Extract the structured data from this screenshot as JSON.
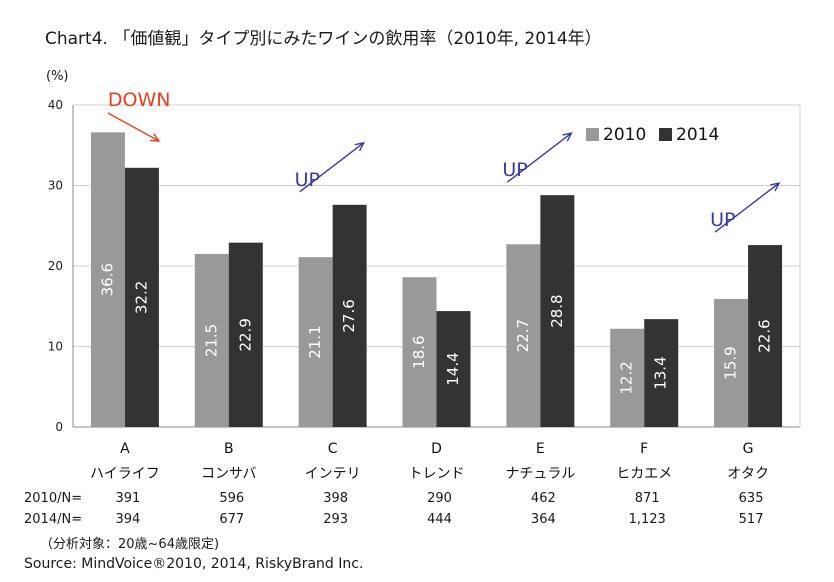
{
  "title": "Chart4. 「価値観」タイプ別にみたワインの飲用率（2010年, 2014年）",
  "y_unit": "(%)",
  "chart_data": {
    "type": "bar",
    "categories": [
      "A",
      "B",
      "C",
      "D",
      "E",
      "F",
      "G"
    ],
    "category_names": [
      "ハイライフ",
      "コンサバ",
      "インテリ",
      "トレンド",
      "ナチュラル",
      "ヒカエメ",
      "オタク"
    ],
    "series": [
      {
        "name": "2010",
        "values": [
          36.6,
          21.5,
          21.1,
          18.6,
          22.7,
          12.2,
          15.9
        ],
        "color": "#999999"
      },
      {
        "name": "2014",
        "values": [
          32.2,
          22.9,
          27.6,
          14.4,
          28.8,
          13.4,
          22.6
        ],
        "color": "#333333"
      }
    ],
    "value_labels": {
      "2010": [
        "36.6",
        "21.5",
        "21.1",
        "18.6",
        "22.7",
        "12.2",
        "15.9"
      ],
      "2014": [
        "32.2",
        "22.9",
        "27.6",
        "14.4",
        "28.8",
        "13.4",
        "22.6"
      ]
    },
    "ylim": [
      0,
      40
    ],
    "yticks": [
      "0",
      "10",
      "20",
      "30",
      "40"
    ],
    "legend_position": "top-right",
    "annotations": [
      {
        "category": "A",
        "text": "DOWN",
        "direction": "down",
        "color": "#e8401c"
      },
      {
        "category": "C",
        "text": "UP",
        "direction": "up",
        "color": "#3a3aa0"
      },
      {
        "category": "E",
        "text": "UP",
        "direction": "up",
        "color": "#3a3aa0"
      },
      {
        "category": "G",
        "text": "UP",
        "direction": "up",
        "color": "#3a3aa0"
      }
    ],
    "grid": true
  },
  "n_table": {
    "rows": [
      {
        "label": "2010/N=",
        "values": [
          "391",
          "596",
          "398",
          "290",
          "462",
          "871",
          "635"
        ]
      },
      {
        "label": "2014/N=",
        "values": [
          "394",
          "677",
          "293",
          "444",
          "364",
          "1,123",
          "517"
        ]
      }
    ]
  },
  "footnote": "（分析対象：20歳~64歳限定)",
  "source": "Source: MindVoice®2010, 2014, RiskyBrand Inc."
}
